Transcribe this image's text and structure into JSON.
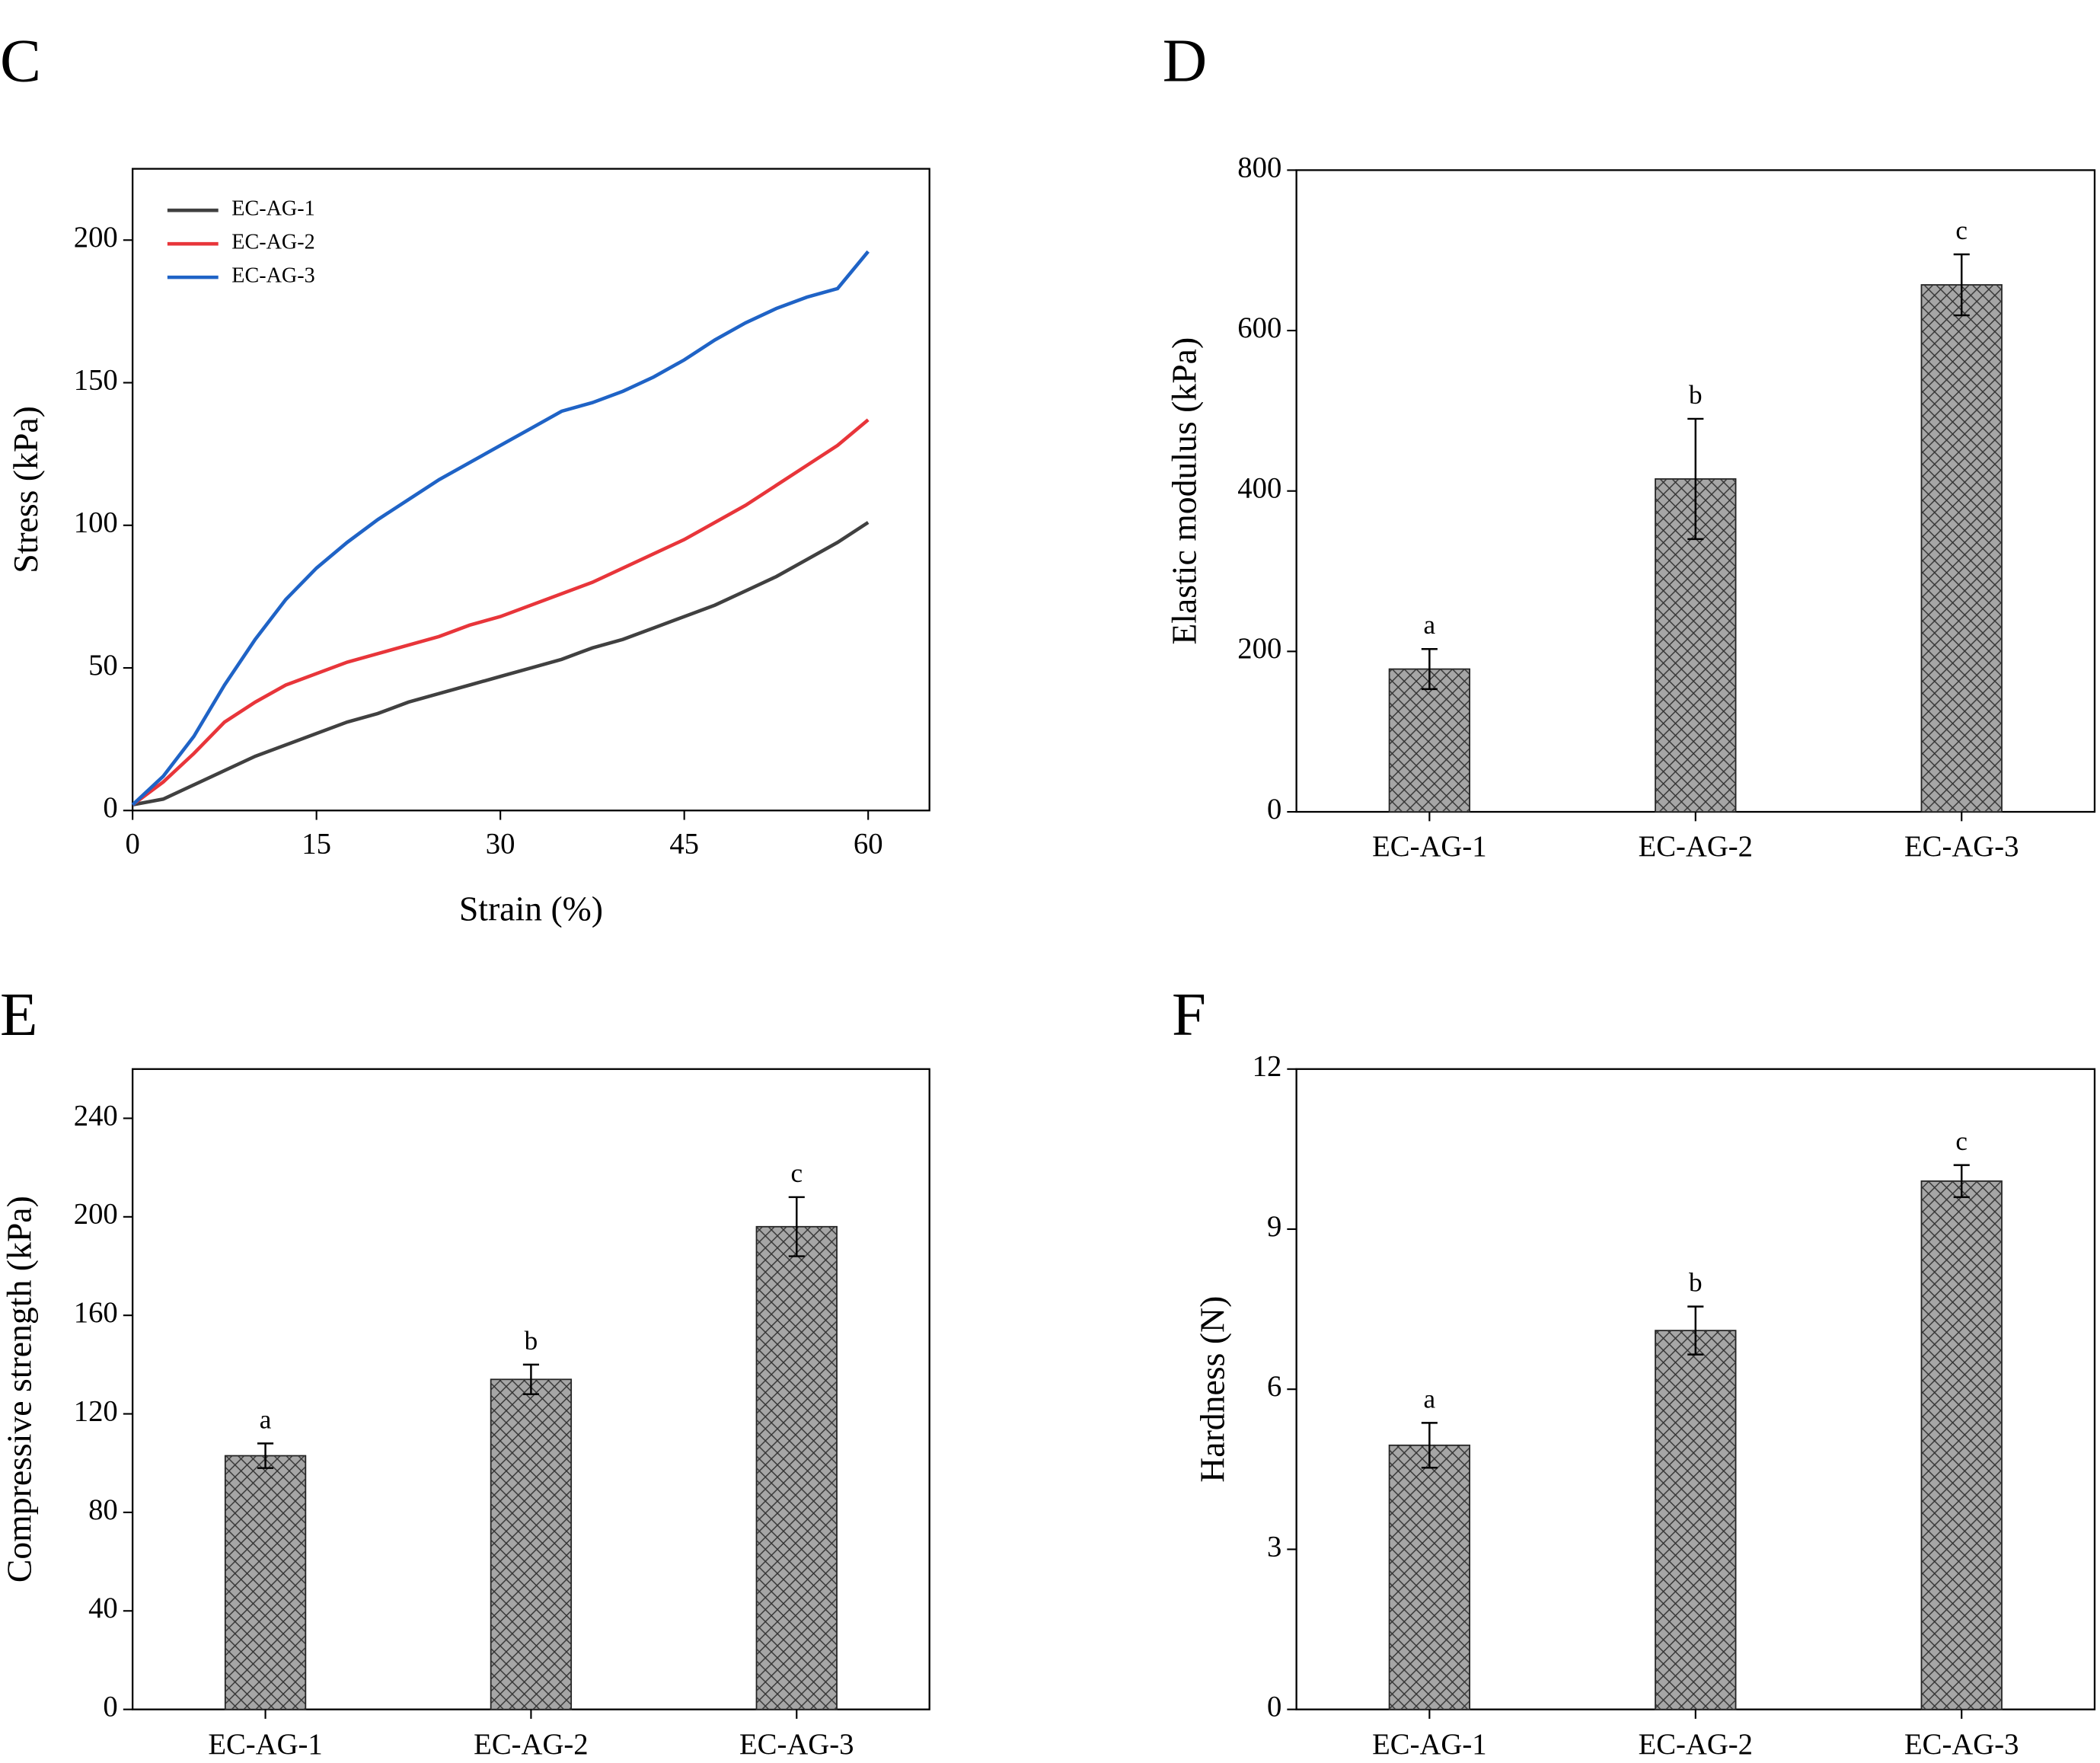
{
  "chart_data": [
    {
      "type": "line",
      "panel_label": "C",
      "x_label": "Strain (%)",
      "y_label": "Stress (kPa)",
      "x": [
        0,
        2.5,
        5,
        7.5,
        10,
        12.5,
        15,
        17.5,
        20,
        22.5,
        25,
        27.5,
        30,
        32.5,
        35,
        37.5,
        40,
        42.5,
        45,
        47.5,
        50,
        52.5,
        55,
        57.5,
        60
      ],
      "series": [
        {
          "name": "EC-AG-1",
          "color": "#404040",
          "values": [
            2,
            4,
            9,
            14,
            19,
            23,
            27,
            31,
            34,
            38,
            41,
            44,
            47,
            50,
            53,
            57,
            60,
            64,
            68,
            72,
            77,
            82,
            88,
            94,
            101
          ]
        },
        {
          "name": "EC-AG-2",
          "color": "#e8353a",
          "values": [
            2,
            10,
            20,
            31,
            38,
            44,
            48,
            52,
            55,
            58,
            61,
            65,
            68,
            72,
            76,
            80,
            85,
            90,
            95,
            101,
            107,
            114,
            121,
            128,
            137
          ]
        },
        {
          "name": "EC-AG-3",
          "color": "#1f63c6",
          "values": [
            2,
            12,
            26,
            44,
            60,
            74,
            85,
            94,
            102,
            109,
            116,
            122,
            128,
            134,
            140,
            143,
            147,
            152,
            158,
            165,
            171,
            176,
            180,
            183,
            196
          ]
        }
      ],
      "xlim": [
        0,
        65
      ],
      "xticks": [
        0,
        15,
        30,
        45,
        60
      ],
      "ylim": [
        0,
        225
      ],
      "yticks": [
        0,
        50,
        100,
        150,
        200
      ],
      "legend": "upper left"
    },
    {
      "type": "bar",
      "panel_label": "D",
      "y_label": "Elastic modulus (kPa)",
      "categories": [
        "EC-AG-1",
        "EC-AG-2",
        "EC-AG-3"
      ],
      "values": [
        178,
        415,
        657
      ],
      "errors": [
        25,
        75,
        38
      ],
      "annotations": [
        "a",
        "b",
        "c"
      ],
      "color": "#a6a6a6",
      "ylim": [
        0,
        800
      ],
      "yticks": [
        0,
        200,
        400,
        600,
        800
      ]
    },
    {
      "type": "bar",
      "panel_label": "E",
      "y_label": "Compressive strength (kPa)",
      "categories": [
        "EC-AG-1",
        "EC-AG-2",
        "EC-AG-3"
      ],
      "values": [
        103,
        134,
        196
      ],
      "errors": [
        5,
        6,
        12
      ],
      "annotations": [
        "a",
        "b",
        "c"
      ],
      "color": "#a6a6a6",
      "ylim": [
        0,
        260
      ],
      "yticks": [
        0,
        40,
        80,
        120,
        160,
        200,
        240
      ]
    },
    {
      "type": "bar",
      "panel_label": "F",
      "y_label": "Hardness (N)",
      "categories": [
        "EC-AG-1",
        "EC-AG-2",
        "EC-AG-3"
      ],
      "values": [
        4.95,
        7.1,
        9.9
      ],
      "errors": [
        0.42,
        0.45,
        0.3
      ],
      "annotations": [
        "a",
        "b",
        "c"
      ],
      "color": "#a6a6a6",
      "ylim": [
        0,
        12
      ],
      "yticks": [
        0,
        3,
        6,
        9,
        12
      ]
    }
  ]
}
